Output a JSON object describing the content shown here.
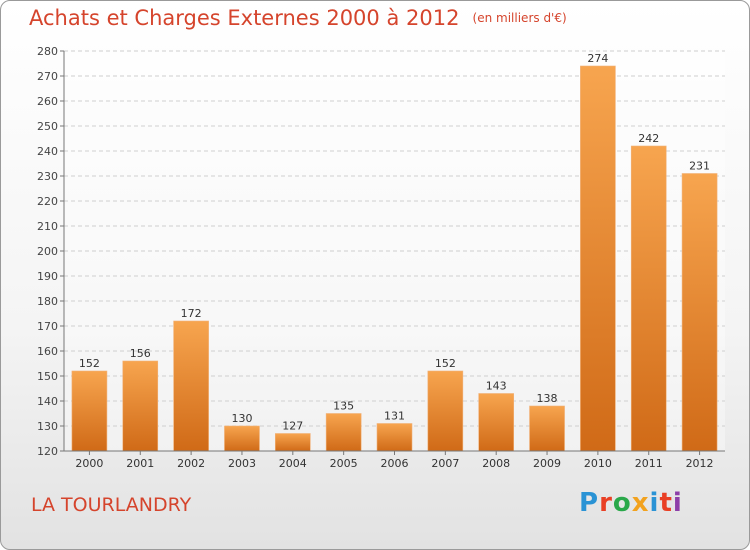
{
  "chart_data": {
    "type": "bar",
    "title": "Achats et Charges Externes 2000 à 2012",
    "unit": "(en milliers d'€)",
    "categories": [
      "2000",
      "2001",
      "2002",
      "2003",
      "2004",
      "2005",
      "2006",
      "2007",
      "2008",
      "2009",
      "2010",
      "2011",
      "2012"
    ],
    "values": [
      152,
      156,
      172,
      130,
      127,
      135,
      131,
      152,
      143,
      138,
      274,
      242,
      231
    ],
    "ylim": [
      120,
      280
    ],
    "yticks": [
      120,
      130,
      140,
      150,
      160,
      170,
      180,
      190,
      200,
      210,
      220,
      230,
      240,
      250,
      260,
      270,
      280
    ],
    "grid": true,
    "bar_color_top": "#f7a54f",
    "bar_color_bottom": "#d06a17"
  },
  "footer": {
    "commune": "LA TOURLANDRY",
    "brand": [
      "P",
      "r",
      "o",
      "x",
      "i",
      "t",
      "i"
    ]
  }
}
